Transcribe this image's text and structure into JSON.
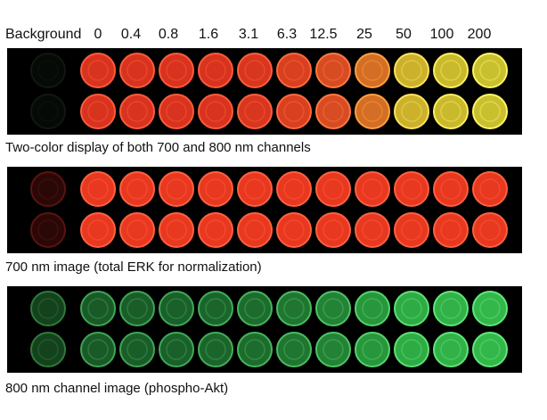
{
  "header": {
    "background_label": "Background",
    "concentrations": [
      "0",
      "0.4",
      "0.8",
      "1.6",
      "3.1",
      "6.3",
      "12.5",
      "25",
      "50",
      "100",
      "200"
    ]
  },
  "panels": [
    {
      "caption": "Two-color display of both 700 and 800 nm channels",
      "wells": {
        "fill": [
          "#060a06",
          "#d8331e",
          "#d8331e",
          "#d8331e",
          "#d8331e",
          "#d8361f",
          "#d84020",
          "#d74c22",
          "#d46e24",
          "#cbb12c",
          "#c9b92d",
          "#c9c02f"
        ],
        "ring": [
          "#101810",
          "#ff5a3a",
          "#ff5a3a",
          "#ff5a3a",
          "#ff5a3a",
          "#ff5e3b",
          "#ff6a3c",
          "#ff7840",
          "#ffa040",
          "#ffe35a",
          "#fff05e",
          "#fff565"
        ]
      }
    },
    {
      "caption": "700 nm image (total ERK for normalization)",
      "wells": {
        "fill": [
          "#2a0807",
          "#e8381f",
          "#e8381f",
          "#e8381f",
          "#e8381f",
          "#e8381f",
          "#e8381f",
          "#e8381f",
          "#e8381f",
          "#e8381f",
          "#e8381f",
          "#e8381f"
        ],
        "ring": [
          "#5a1410",
          "#ff6040",
          "#ff6040",
          "#ff6040",
          "#ff6040",
          "#ff6040",
          "#ff6040",
          "#ff6040",
          "#ff6040",
          "#ff6040",
          "#ff6040",
          "#ff6040"
        ]
      }
    },
    {
      "caption": "800 nm channel image (phospho-Akt)",
      "wells": {
        "fill": [
          "#14421c",
          "#1a5a28",
          "#1a5d29",
          "#1a602a",
          "#1b652c",
          "#1d6c2e",
          "#207631",
          "#238236",
          "#28963c",
          "#2fab45",
          "#31b148",
          "#33b64a"
        ],
        "ring": [
          "#2f7a3b",
          "#3ea555",
          "#3ea555",
          "#40a857",
          "#42ad59",
          "#45b55c",
          "#49bd60",
          "#4dc564",
          "#55d56b",
          "#5de273",
          "#60e676",
          "#62e878"
        ]
      }
    }
  ]
}
